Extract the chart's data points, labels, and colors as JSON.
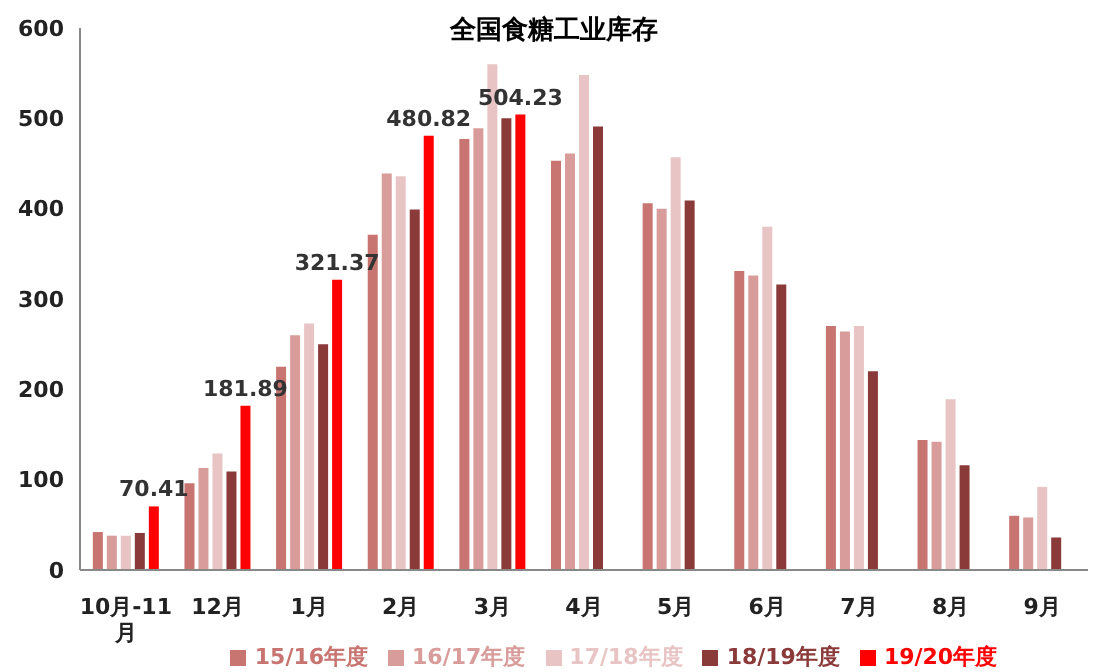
{
  "chart_data": {
    "type": "bar",
    "title": "全国食糖工业库存",
    "categories": [
      "10月-11月",
      "12月",
      "1月",
      "2月",
      "3月",
      "4月",
      "5月",
      "6月",
      "7月",
      "8月",
      "9月"
    ],
    "series": [
      {
        "name": "15/16年度",
        "color": "#c87470",
        "values": [
          42,
          96,
          225,
          371,
          477,
          453,
          406,
          331,
          270,
          144,
          60
        ]
      },
      {
        "name": "16/17年度",
        "color": "#d89c9a",
        "values": [
          38,
          113,
          260,
          439,
          489,
          461,
          400,
          326,
          264,
          142,
          58
        ]
      },
      {
        "name": "17/18年度",
        "color": "#e8c4c4",
        "values": [
          38,
          129,
          273,
          436,
          560,
          548,
          457,
          380,
          270,
          189,
          92
        ]
      },
      {
        "name": "18/19年度",
        "color": "#8b3a3a",
        "values": [
          41,
          109,
          250,
          399,
          500,
          491,
          409,
          316,
          220,
          116,
          36
        ]
      },
      {
        "name": "19/20年度",
        "color": "#ff0000",
        "values": [
          70.41,
          181.89,
          321.37,
          480.82,
          504.23,
          null,
          null,
          null,
          null,
          null,
          null
        ],
        "value_labels": [
          "70.41",
          "181.89",
          "321.37",
          "480.82",
          "504.23",
          null,
          null,
          null,
          null,
          null,
          null
        ]
      }
    ],
    "ylim": [
      0,
      600
    ],
    "yticks": [
      0,
      100,
      200,
      300,
      400,
      500,
      600
    ],
    "grid": false,
    "legend": "bottom"
  }
}
